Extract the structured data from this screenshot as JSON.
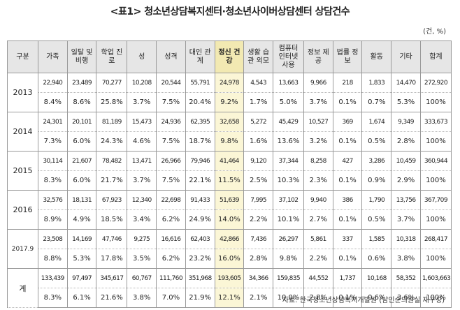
{
  "title": "<표1> 청소년상담복지센터·청소년사이버상담센터 상담건수",
  "unit": "(건, %)",
  "source": "자료: 한국청소년상담복지개발원 (남인순의원실 재구성)",
  "highlight_color": "#f2e9b2",
  "headers": [
    "구분",
    "가족",
    "일탈 및 비행",
    "학업 진로",
    "성",
    "성격",
    "대인 관계",
    "정신 건강",
    "생활 습관 외모",
    "컴퓨터 인터넷 사용",
    "정보 제공",
    "법률 정보",
    "활동",
    "기타",
    "합계"
  ],
  "rows": [
    {
      "year": "2013",
      "counts": [
        "22,940",
        "23,489",
        "70,277",
        "10,208",
        "20,544",
        "55,791",
        "24,978",
        "4,543",
        "13,663",
        "9,966",
        "218",
        "1,833",
        "14,470",
        "272,920"
      ],
      "percents": [
        "8.4%",
        "8.6%",
        "25.8%",
        "3.7%",
        "7.5%",
        "20.4%",
        "9.2%",
        "1.7%",
        "5.0%",
        "3.7%",
        "0.1%",
        "0.7%",
        "5.3%",
        "100%"
      ]
    },
    {
      "year": "2014",
      "counts": [
        "24,301",
        "20,101",
        "81,189",
        "15,473",
        "24,936",
        "62,395",
        "32,658",
        "5,272",
        "45,429",
        "10,527",
        "369",
        "1,674",
        "9,349",
        "333,673"
      ],
      "percents": [
        "7.3%",
        "6.0%",
        "24.3%",
        "4.6%",
        "7.5%",
        "18.7%",
        "9.8%",
        "1.6%",
        "13.6%",
        "3.2%",
        "0.1%",
        "0.5%",
        "2.8%",
        "100%"
      ]
    },
    {
      "year": "2015",
      "counts": [
        "30,114",
        "21,607",
        "78,482",
        "13,471",
        "26,966",
        "79,946",
        "41,464",
        "9,120",
        "37,344",
        "8,258",
        "427",
        "3,286",
        "10,459",
        "360,944"
      ],
      "percents": [
        "8.3%",
        "6.0%",
        "21.7%",
        "3.7%",
        "7.5%",
        "22.1%",
        "11.5%",
        "2.5%",
        "10.3%",
        "2.3%",
        "0.1%",
        "0.9%",
        "2.9%",
        "100%"
      ]
    },
    {
      "year": "2016",
      "counts": [
        "32,576",
        "18,131",
        "67,923",
        "12,340",
        "22,698",
        "91,433",
        "51,639",
        "7,995",
        "37,102",
        "9,940",
        "386",
        "1,790",
        "13,756",
        "367,709"
      ],
      "percents": [
        "8.9%",
        "4.9%",
        "18.5%",
        "3.4%",
        "6.2%",
        "24.9%",
        "14.0%",
        "2.2%",
        "10.1%",
        "2.7%",
        "0.1%",
        "0.5%",
        "3.7%",
        "100%"
      ]
    },
    {
      "year": "2017.9",
      "counts": [
        "23,508",
        "14,169",
        "47,746",
        "9,275",
        "16,616",
        "62,403",
        "42,866",
        "7,436",
        "26,297",
        "5,861",
        "337",
        "1,585",
        "10,318",
        "268,417"
      ],
      "percents": [
        "8.8%",
        "5.3%",
        "17.8%",
        "3.5%",
        "6.2%",
        "23.2%",
        "16.0%",
        "2.8%",
        "9.8%",
        "2.2%",
        "0.1%",
        "0.6%",
        "3.8%",
        "100%"
      ]
    },
    {
      "year": "계",
      "counts": [
        "133,439",
        "97,497",
        "345,617",
        "60,767",
        "111,760",
        "351,968",
        "193,605",
        "34,366",
        "159,835",
        "44,552",
        "1,737",
        "10,168",
        "58,352",
        "1,603,663"
      ],
      "percents": [
        "8.3%",
        "6.1%",
        "21.6%",
        "3.8%",
        "7.0%",
        "21.9%",
        "12.1%",
        "2.1%",
        "10.0%",
        "2.8%",
        "0.1%",
        "0.6%",
        "3.6%",
        "100%"
      ]
    }
  ]
}
